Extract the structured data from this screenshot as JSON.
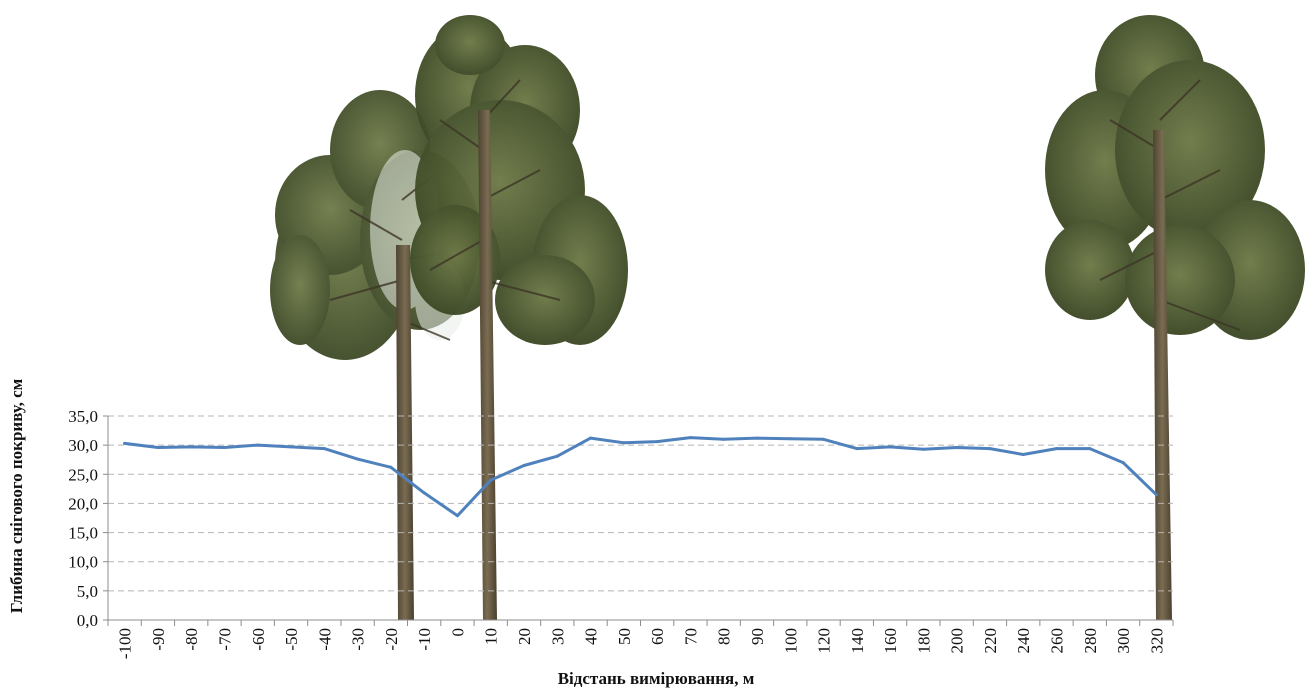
{
  "chart_data": {
    "type": "line",
    "title": "",
    "xlabel": "Відстань вимірювання, м",
    "ylabel": "Глибина снігового покриву, см",
    "categories": [
      "-100",
      "-90",
      "-80",
      "-70",
      "-60",
      "-50",
      "-40",
      "-30",
      "-20",
      "-10",
      "0",
      "10",
      "20",
      "30",
      "40",
      "50",
      "60",
      "70",
      "80",
      "90",
      "100",
      "120",
      "140",
      "160",
      "180",
      "200",
      "220",
      "240",
      "260",
      "280",
      "300",
      "320"
    ],
    "series": [
      {
        "values": [
          30.3,
          29.6,
          29.7,
          29.6,
          30.0,
          29.7,
          29.4,
          27.6,
          26.2,
          21.8,
          17.9,
          24.0,
          26.5,
          28.1,
          31.2,
          30.4,
          30.6,
          31.3,
          31.0,
          31.2,
          31.1,
          31.0,
          29.4,
          29.7,
          29.3,
          29.6,
          29.4,
          28.4,
          29.4,
          29.4,
          27.0,
          21.5
        ],
        "color": "#4f81bd"
      }
    ],
    "y_tick_labels": [
      "0,0",
      "5,0",
      "10,0",
      "15,0",
      "20,0",
      "25,0",
      "30,0",
      "35,0"
    ],
    "ylim": [
      0,
      35
    ],
    "grid": true,
    "grid_style": "dashed",
    "legend": "none",
    "decoration": "pine-tree illustrations behind the plot"
  }
}
